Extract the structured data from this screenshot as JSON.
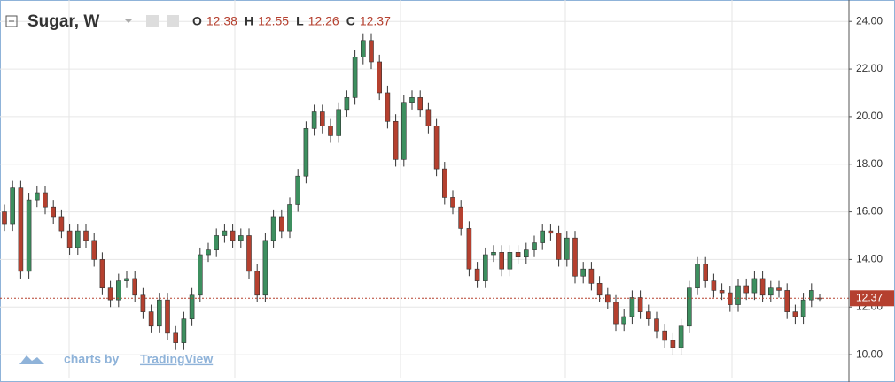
{
  "chart_data": {
    "type": "candlestick",
    "title": "Sugar, W",
    "ohlc_labels": [
      "O",
      "H",
      "L",
      "C"
    ],
    "watermark": "charts by",
    "watermark_brand": "TradingView",
    "up_color": "#3d8f5f",
    "down_color": "#b5402f",
    "grid": true,
    "ylim": [
      9.0,
      24.9
    ],
    "yticks": [
      {
        "value": 10,
        "label": "10.00"
      },
      {
        "value": 12,
        "label": "12.00"
      },
      {
        "value": 14,
        "label": "14.00"
      },
      {
        "value": 16,
        "label": "16.00"
      },
      {
        "value": 18,
        "label": "18.00"
      },
      {
        "value": 20,
        "label": "20.00"
      },
      {
        "value": 22,
        "label": "22.00"
      },
      {
        "value": 24,
        "label": "24.00"
      }
    ],
    "open": [
      16.0,
      15.5,
      17.0,
      13.5,
      16.5,
      16.8,
      16.2,
      15.8,
      15.2,
      14.5,
      15.2,
      14.8,
      14.0,
      12.8,
      12.3,
      13.1,
      13.2,
      12.5,
      11.8,
      11.2,
      12.3,
      10.9,
      10.5,
      11.5,
      12.5,
      14.2,
      14.4,
      15.0,
      15.2,
      14.8,
      15.0,
      13.5,
      12.5,
      14.8,
      15.8,
      15.2,
      16.3,
      17.5,
      19.5,
      20.2,
      19.6,
      19.2,
      20.3,
      20.8,
      22.5,
      23.2,
      22.3,
      21.0,
      19.8,
      18.2,
      20.6,
      20.8,
      20.3,
      19.6,
      17.8,
      16.6,
      16.2,
      15.3,
      13.6,
      13.1,
      14.2,
      14.3,
      13.6,
      14.3,
      14.1,
      14.4,
      14.7,
      15.2,
      15.1,
      14.0,
      14.9,
      13.3,
      13.6,
      13.0,
      12.5,
      12.2,
      11.3,
      11.6,
      12.4,
      11.8,
      11.5,
      11.0,
      10.6,
      10.3,
      11.2,
      12.8,
      13.8,
      13.1,
      12.7,
      12.6,
      12.1,
      12.9,
      12.6,
      13.2,
      12.5,
      12.8,
      12.7,
      11.8,
      11.6,
      12.3,
      12.38
    ],
    "high": [
      16.3,
      17.3,
      17.3,
      16.8,
      17.1,
      17.1,
      16.5,
      16.1,
      15.5,
      15.5,
      15.5,
      15.1,
      14.3,
      13.1,
      13.4,
      13.5,
      13.5,
      12.8,
      12.1,
      12.6,
      12.6,
      11.2,
      11.8,
      12.8,
      14.5,
      14.7,
      15.3,
      15.5,
      15.5,
      15.3,
      15.3,
      13.8,
      15.1,
      16.1,
      16.1,
      16.6,
      17.8,
      19.8,
      20.5,
      20.5,
      19.9,
      20.6,
      21.1,
      22.8,
      23.5,
      23.5,
      22.6,
      21.3,
      20.1,
      20.9,
      21.1,
      21.1,
      20.6,
      19.9,
      18.1,
      16.9,
      16.5,
      15.6,
      13.9,
      14.5,
      14.6,
      14.6,
      14.6,
      14.6,
      14.7,
      15.0,
      15.5,
      15.5,
      15.4,
      15.2,
      15.2,
      13.9,
      13.9,
      13.3,
      12.8,
      12.5,
      11.9,
      12.7,
      12.7,
      12.1,
      11.8,
      11.3,
      10.9,
      11.5,
      13.1,
      14.1,
      14.1,
      13.4,
      13.0,
      12.9,
      13.2,
      13.2,
      13.5,
      13.5,
      13.1,
      13.1,
      13.0,
      12.1,
      12.6,
      13.0,
      12.55
    ],
    "low": [
      15.2,
      15.2,
      13.2,
      13.2,
      16.2,
      15.9,
      15.5,
      14.9,
      14.2,
      14.2,
      14.5,
      13.7,
      12.5,
      12.0,
      12.0,
      12.8,
      12.2,
      11.5,
      10.9,
      10.9,
      10.6,
      10.2,
      10.2,
      11.2,
      12.2,
      13.9,
      14.1,
      14.7,
      14.5,
      14.5,
      13.2,
      12.2,
      12.2,
      14.5,
      14.9,
      14.9,
      16.0,
      17.2,
      19.2,
      19.3,
      18.9,
      18.9,
      20.0,
      20.5,
      22.2,
      22.0,
      20.7,
      19.5,
      17.9,
      17.9,
      20.3,
      20.0,
      19.3,
      17.5,
      16.3,
      15.9,
      15.0,
      13.3,
      12.8,
      12.8,
      13.9,
      13.3,
      13.3,
      13.8,
      13.8,
      14.1,
      14.4,
      14.8,
      13.7,
      13.7,
      13.0,
      13.0,
      12.7,
      12.2,
      11.9,
      11.0,
      11.0,
      11.3,
      11.5,
      11.2,
      10.7,
      10.3,
      10.0,
      10.0,
      10.9,
      12.5,
      12.8,
      12.4,
      12.3,
      11.8,
      11.8,
      12.3,
      12.3,
      12.2,
      12.2,
      12.4,
      11.5,
      11.3,
      11.3,
      12.0,
      12.26
    ],
    "close": [
      15.5,
      17.0,
      13.5,
      16.5,
      16.8,
      16.2,
      15.8,
      15.2,
      14.5,
      15.2,
      14.8,
      14.0,
      12.8,
      12.3,
      13.1,
      13.2,
      12.5,
      11.8,
      11.2,
      12.3,
      10.9,
      10.5,
      11.5,
      12.5,
      14.2,
      14.4,
      15.0,
      15.2,
      14.8,
      15.0,
      13.5,
      12.5,
      14.8,
      15.8,
      15.2,
      16.3,
      17.5,
      19.5,
      20.2,
      19.6,
      19.2,
      20.3,
      20.8,
      22.5,
      23.2,
      22.3,
      21.0,
      19.8,
      18.2,
      20.6,
      20.8,
      20.3,
      19.6,
      17.8,
      16.6,
      16.2,
      15.3,
      13.6,
      13.1,
      14.2,
      14.3,
      13.6,
      14.3,
      14.1,
      14.4,
      14.7,
      15.2,
      15.1,
      14.0,
      14.9,
      13.3,
      13.6,
      13.0,
      12.5,
      12.2,
      11.3,
      11.6,
      12.4,
      11.8,
      11.5,
      11.0,
      10.6,
      10.3,
      11.2,
      12.8,
      13.8,
      13.1,
      12.7,
      12.6,
      12.1,
      12.9,
      12.6,
      13.2,
      12.5,
      12.8,
      12.7,
      11.8,
      11.6,
      12.3,
      12.7,
      12.37
    ]
  }
}
